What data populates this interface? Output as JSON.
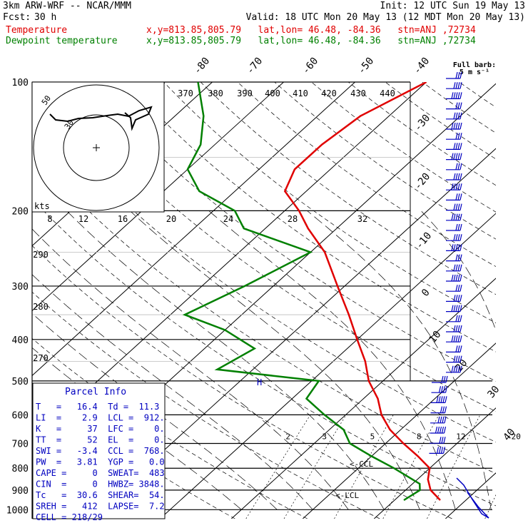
{
  "header": {
    "model": "3km ARW-WRF -- NCAR/MMM",
    "init": "Init: 12 UTC Sun 19 May 13",
    "fcst_label": "Fcst:",
    "fcst_value": "30 h",
    "valid": "Valid: 18 UTC Mon 20 May 13 (12 MDT Mon 20 May 13)",
    "temp_label": "Temperature",
    "dew_label": "Dewpoint temperature",
    "loc_temp": "x,y=813.85,805.79   lat,lon= 46.48, -84.36   stn=ANJ ,72734",
    "loc_dew": "x,y=813.85,805.79   lat,lon= 46.48, -84.36   stn=ANJ ,72734"
  },
  "colors": {
    "temperature": "#e00000",
    "dewpoint": "#008000",
    "barbs": "#0000c0",
    "parcel": "#0000c0"
  },
  "pressure_labels": [
    "100",
    "200",
    "300",
    "400",
    "500",
    "600",
    "700",
    "800",
    "900",
    "1000"
  ],
  "skew_labels": [
    "-80",
    "-70",
    "-60",
    "-50",
    "-40",
    "-30",
    "-20",
    "-10",
    "0",
    "10",
    "20",
    "30",
    "40"
  ],
  "theta_labels": [
    "370",
    "380",
    "390",
    "400",
    "410",
    "420",
    "430",
    "440",
    "290",
    "280",
    "270"
  ],
  "mixing_labels": [
    "2",
    "3",
    "5",
    "8",
    "12",
    "20"
  ],
  "hodo": {
    "speed_labels": [
      "8",
      "12",
      "16",
      "20",
      "24",
      "28",
      "32"
    ],
    "units": "kts",
    "rings": [
      "50",
      "30"
    ]
  },
  "barb_key": {
    "title": "Full barb:",
    "value": "5 m s⁻¹"
  },
  "annotations": {
    "ccl": "<-CCL",
    "lcl": "<-LCL",
    "marker": "H"
  },
  "parcel": {
    "title": "Parcel Info",
    "rows": [
      "T   =   16.4  Td =  11.3",
      "LI  =    2.9  LCL =  912.",
      "K   =     37  LFC =    0.",
      "TT  =     52  EL  =    0.",
      "SWI =   -3.4  CCL =  768.",
      "PW  =   3.81  YGP =   0.0",
      "CAPE =     0  SWEAT=  483",
      "CIN  =     0  HWBZ= 3848.",
      "Tc   =  30.6  SHEAR=  54.",
      "SREH =   412  LAPSE=  7.2",
      "CELL = 218/29"
    ]
  },
  "chart_data": {
    "type": "line",
    "title": "",
    "ylabel": "",
    "xlabel": "",
    "y_scale": "log pressure (hPa)",
    "ylim": [
      1000,
      100
    ],
    "series": [
      {
        "name": "Temperature",
        "points": [
          [
            950,
            16.4
          ],
          [
            900,
            13.5
          ],
          [
            850,
            11.5
          ],
          [
            800,
            10
          ],
          [
            750,
            6.5
          ],
          [
            700,
            2.5
          ],
          [
            650,
            -1.5
          ],
          [
            600,
            -5
          ],
          [
            550,
            -8
          ],
          [
            500,
            -12
          ],
          [
            450,
            -15.5
          ],
          [
            400,
            -20
          ],
          [
            350,
            -25
          ],
          [
            300,
            -31
          ],
          [
            250,
            -38
          ],
          [
            220,
            -44
          ],
          [
            200,
            -48
          ],
          [
            180,
            -53
          ],
          [
            160,
            -55
          ],
          [
            140,
            -55
          ],
          [
            120,
            -54
          ],
          [
            100,
            -50
          ]
        ]
      },
      {
        "name": "Dewpoint temperature",
        "points": [
          [
            950,
            11.3
          ],
          [
            900,
            12
          ],
          [
            870,
            11
          ],
          [
            800,
            5
          ],
          [
            750,
            0
          ],
          [
            700,
            -5
          ],
          [
            650,
            -8
          ],
          [
            600,
            -13
          ],
          [
            550,
            -18
          ],
          [
            500,
            -19
          ],
          [
            470,
            -35
          ],
          [
            420,
            -33
          ],
          [
            380,
            -40
          ],
          [
            350,
            -48
          ],
          [
            300,
            -44
          ],
          [
            250,
            -40
          ],
          [
            220,
            -53
          ],
          [
            200,
            -57
          ],
          [
            180,
            -65
          ],
          [
            160,
            -70
          ],
          [
            140,
            -72
          ],
          [
            120,
            -76
          ],
          [
            100,
            -82
          ]
        ]
      }
    ],
    "parcel": {
      "T": 16.4,
      "Td": 11.3,
      "LCL": 912,
      "CCL": 768,
      "LI": 2.9,
      "PW": 3.81,
      "CAPE": 0
    }
  }
}
